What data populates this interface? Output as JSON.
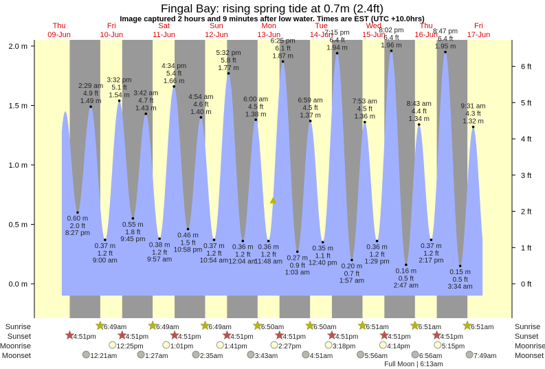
{
  "title": "Fingal Bay: rising  spring tide at 0.7m (2.4ft)",
  "subtitle": "Image captured 2 hours and 9 minutes after low water. Times are EST (UTC +10.0hrs)",
  "days": [
    {
      "name": "Thu",
      "date": "09-Jun"
    },
    {
      "name": "Fri",
      "date": "10-Jun"
    },
    {
      "name": "Sat",
      "date": "11-Jun"
    },
    {
      "name": "Sun",
      "date": "12-Jun"
    },
    {
      "name": "Mon",
      "date": "13-Jun"
    },
    {
      "name": "Tue",
      "date": "14-Jun"
    },
    {
      "name": "Wed",
      "date": "15-Jun"
    },
    {
      "name": "Thu",
      "date": "16-Jun"
    },
    {
      "name": "Fri",
      "date": "17-Jun"
    }
  ],
  "row_labels": {
    "sunrise": "Sunrise",
    "sunset": "Sunset",
    "moonrise": "Moonrise",
    "moonset": "Moonset"
  },
  "full_moon": {
    "label": "Full Moon | 6:13am",
    "date": "16-Jun",
    "time": "6:13am"
  },
  "colors": {
    "water": "#a0b0ff",
    "day": "#ffffc8",
    "night": "#999999",
    "day_label": "#e00000",
    "sun_star": "#b8b800",
    "sunset_star": "#c0504d",
    "moonrise": "#ffffcc",
    "moonset": "#b8b8b0"
  },
  "chart_data": {
    "type": "area",
    "title": "Fingal Bay: rising  spring tide at 0.7m (2.4ft)",
    "y_left": {
      "unit": "m",
      "ticks": [
        "0.0 m",
        "0.5 m",
        "1.0 m",
        "1.5 m",
        "2.0 m"
      ],
      "values": [
        0,
        0.5,
        1.0,
        1.5,
        2.0
      ]
    },
    "y_right": {
      "unit": "ft",
      "ticks": [
        "0 ft",
        "1 ft",
        "2 ft",
        "3 ft",
        "4 ft",
        "5 ft",
        "6 ft"
      ],
      "values": [
        0,
        1,
        2,
        3,
        4,
        5,
        6
      ]
    },
    "current": {
      "date": "13-Jun",
      "time": "1:57 pm",
      "m": 0.7
    },
    "extremes": [
      {
        "date": "09-Jun",
        "time": "2:50 pm",
        "m": 1.45,
        "labeled": false
      },
      {
        "date": "09-Jun",
        "time": "8:27 pm",
        "m": 0.6,
        "ft": "2.0 ft",
        "m_label": "0.60 m",
        "type": "low"
      },
      {
        "date": "10-Jun",
        "time": "2:29 am",
        "m": 1.49,
        "ft": "4.9 ft",
        "m_label": "1.49 m",
        "type": "high"
      },
      {
        "date": "10-Jun",
        "time": "9:00 am",
        "m": 0.37,
        "ft": "1.2 ft",
        "m_label": "0.37 m",
        "type": "low"
      },
      {
        "date": "10-Jun",
        "time": "3:32 pm",
        "m": 1.54,
        "ft": "5.1 ft",
        "m_label": "1.54 m",
        "type": "high"
      },
      {
        "date": "10-Jun",
        "time": "9:45 pm",
        "m": 0.55,
        "ft": "1.8 ft",
        "m_label": "0.55 m",
        "type": "low"
      },
      {
        "date": "11-Jun",
        "time": "3:42 am",
        "m": 1.43,
        "ft": "4.7 ft",
        "m_label": "1.43 m",
        "type": "high"
      },
      {
        "date": "11-Jun",
        "time": "9:57 am",
        "m": 0.38,
        "ft": "1.2 ft",
        "m_label": "0.38 m",
        "type": "low"
      },
      {
        "date": "11-Jun",
        "time": "4:34 pm",
        "m": 1.66,
        "ft": "5.4 ft",
        "m_label": "1.66 m",
        "type": "high"
      },
      {
        "date": "11-Jun",
        "time": "10:58 pm",
        "m": 0.46,
        "ft": "1.5 ft",
        "m_label": "0.46 m",
        "type": "low"
      },
      {
        "date": "12-Jun",
        "time": "4:54 am",
        "m": 1.4,
        "ft": "4.6 ft",
        "m_label": "1.40 m",
        "type": "high"
      },
      {
        "date": "12-Jun",
        "time": "10:54 am",
        "m": 0.37,
        "ft": "1.2 ft",
        "m_label": "0.37 m",
        "type": "low"
      },
      {
        "date": "12-Jun",
        "time": "5:32 pm",
        "m": 1.77,
        "ft": "5.8 ft",
        "m_label": "1.77 m",
        "type": "high"
      },
      {
        "date": "13-Jun",
        "time": "12:04 am",
        "m": 0.36,
        "ft": "1.2 ft",
        "m_label": "0.36 m",
        "type": "low"
      },
      {
        "date": "13-Jun",
        "time": "6:00 am",
        "m": 1.38,
        "ft": "4.5 ft",
        "m_label": "1.38 m",
        "type": "high"
      },
      {
        "date": "13-Jun",
        "time": "11:48 am",
        "m": 0.36,
        "ft": "1.2 ft",
        "m_label": "0.36 m",
        "type": "low"
      },
      {
        "date": "13-Jun",
        "time": "6:25 pm",
        "m": 1.87,
        "ft": "6.1 ft",
        "m_label": "1.87 m",
        "type": "high"
      },
      {
        "date": "14-Jun",
        "time": "1:03 am",
        "m": 0.27,
        "ft": "0.9 ft",
        "m_label": "0.27 m",
        "type": "low"
      },
      {
        "date": "14-Jun",
        "time": "6:59 am",
        "m": 1.37,
        "ft": "4.5 ft",
        "m_label": "1.37 m",
        "type": "high"
      },
      {
        "date": "14-Jun",
        "time": "12:40 pm",
        "m": 0.35,
        "ft": "1.1 ft",
        "m_label": "0.35 m",
        "type": "low"
      },
      {
        "date": "14-Jun",
        "time": "7:15 pm",
        "m": 1.94,
        "ft": "6.4 ft",
        "m_label": "1.94 m",
        "type": "high"
      },
      {
        "date": "15-Jun",
        "time": "1:57 am",
        "m": 0.2,
        "ft": "0.7 ft",
        "m_label": "0.20 m",
        "type": "low"
      },
      {
        "date": "15-Jun",
        "time": "7:53 am",
        "m": 1.36,
        "ft": "4.5 ft",
        "m_label": "1.36 m",
        "type": "high"
      },
      {
        "date": "15-Jun",
        "time": "1:29 pm",
        "m": 0.36,
        "ft": "1.2 ft",
        "m_label": "0.36 m",
        "type": "low"
      },
      {
        "date": "15-Jun",
        "time": "8:02 pm",
        "m": 1.96,
        "ft": "6.4 ft",
        "m_label": "1.96 m",
        "type": "high"
      },
      {
        "date": "16-Jun",
        "time": "2:47 am",
        "m": 0.16,
        "ft": "0.5 ft",
        "m_label": "0.16 m",
        "type": "low"
      },
      {
        "date": "16-Jun",
        "time": "8:43 am",
        "m": 1.34,
        "ft": "4.4 ft",
        "m_label": "1.34 m",
        "type": "high"
      },
      {
        "date": "16-Jun",
        "time": "2:17 pm",
        "m": 0.37,
        "ft": "1.2 ft",
        "m_label": "0.37 m",
        "type": "low"
      },
      {
        "date": "16-Jun",
        "time": "8:47 pm",
        "m": 1.95,
        "ft": "6.4 ft",
        "m_label": "1.95 m",
        "type": "high"
      },
      {
        "date": "17-Jun",
        "time": "3:34 am",
        "m": 0.15,
        "ft": "0.5 ft",
        "m_label": "0.15 m",
        "type": "low"
      },
      {
        "date": "17-Jun",
        "time": "9:31 am",
        "m": 1.32,
        "ft": "4.3 ft",
        "m_label": "1.32 m",
        "type": "high"
      }
    ],
    "sunrise": [
      {
        "date": "10-Jun",
        "time": "6:49am"
      },
      {
        "date": "11-Jun",
        "time": "6:49am"
      },
      {
        "date": "12-Jun",
        "time": "6:49am"
      },
      {
        "date": "13-Jun",
        "time": "6:50am"
      },
      {
        "date": "14-Jun",
        "time": "6:50am"
      },
      {
        "date": "15-Jun",
        "time": "6:51am"
      },
      {
        "date": "16-Jun",
        "time": "6:51am"
      },
      {
        "date": "17-Jun",
        "time": "6:51am"
      }
    ],
    "sunset": [
      {
        "date": "09-Jun",
        "time": "4:51pm"
      },
      {
        "date": "10-Jun",
        "time": "4:51pm"
      },
      {
        "date": "11-Jun",
        "time": "4:51pm"
      },
      {
        "date": "12-Jun",
        "time": "4:51pm"
      },
      {
        "date": "13-Jun",
        "time": "4:51pm"
      },
      {
        "date": "14-Jun",
        "time": "4:51pm"
      },
      {
        "date": "15-Jun",
        "time": "4:51pm"
      },
      {
        "date": "16-Jun",
        "time": "4:51pm"
      }
    ],
    "moonrise": [
      {
        "date": "10-Jun",
        "time": "12:25pm"
      },
      {
        "date": "11-Jun",
        "time": "1:01pm"
      },
      {
        "date": "12-Jun",
        "time": "1:41pm"
      },
      {
        "date": "13-Jun",
        "time": "2:27pm"
      },
      {
        "date": "14-Jun",
        "time": "3:18pm"
      },
      {
        "date": "15-Jun",
        "time": "4:14pm"
      },
      {
        "date": "16-Jun",
        "time": "5:15pm"
      }
    ],
    "moonset": [
      {
        "date": "10-Jun",
        "time": "12:21am"
      },
      {
        "date": "11-Jun",
        "time": "1:27am"
      },
      {
        "date": "12-Jun",
        "time": "2:35am"
      },
      {
        "date": "13-Jun",
        "time": "3:43am"
      },
      {
        "date": "14-Jun",
        "time": "4:51am"
      },
      {
        "date": "15-Jun",
        "time": "5:56am"
      },
      {
        "date": "16-Jun",
        "time": "6:56am"
      },
      {
        "date": "17-Jun",
        "time": "7:49am"
      }
    ]
  }
}
